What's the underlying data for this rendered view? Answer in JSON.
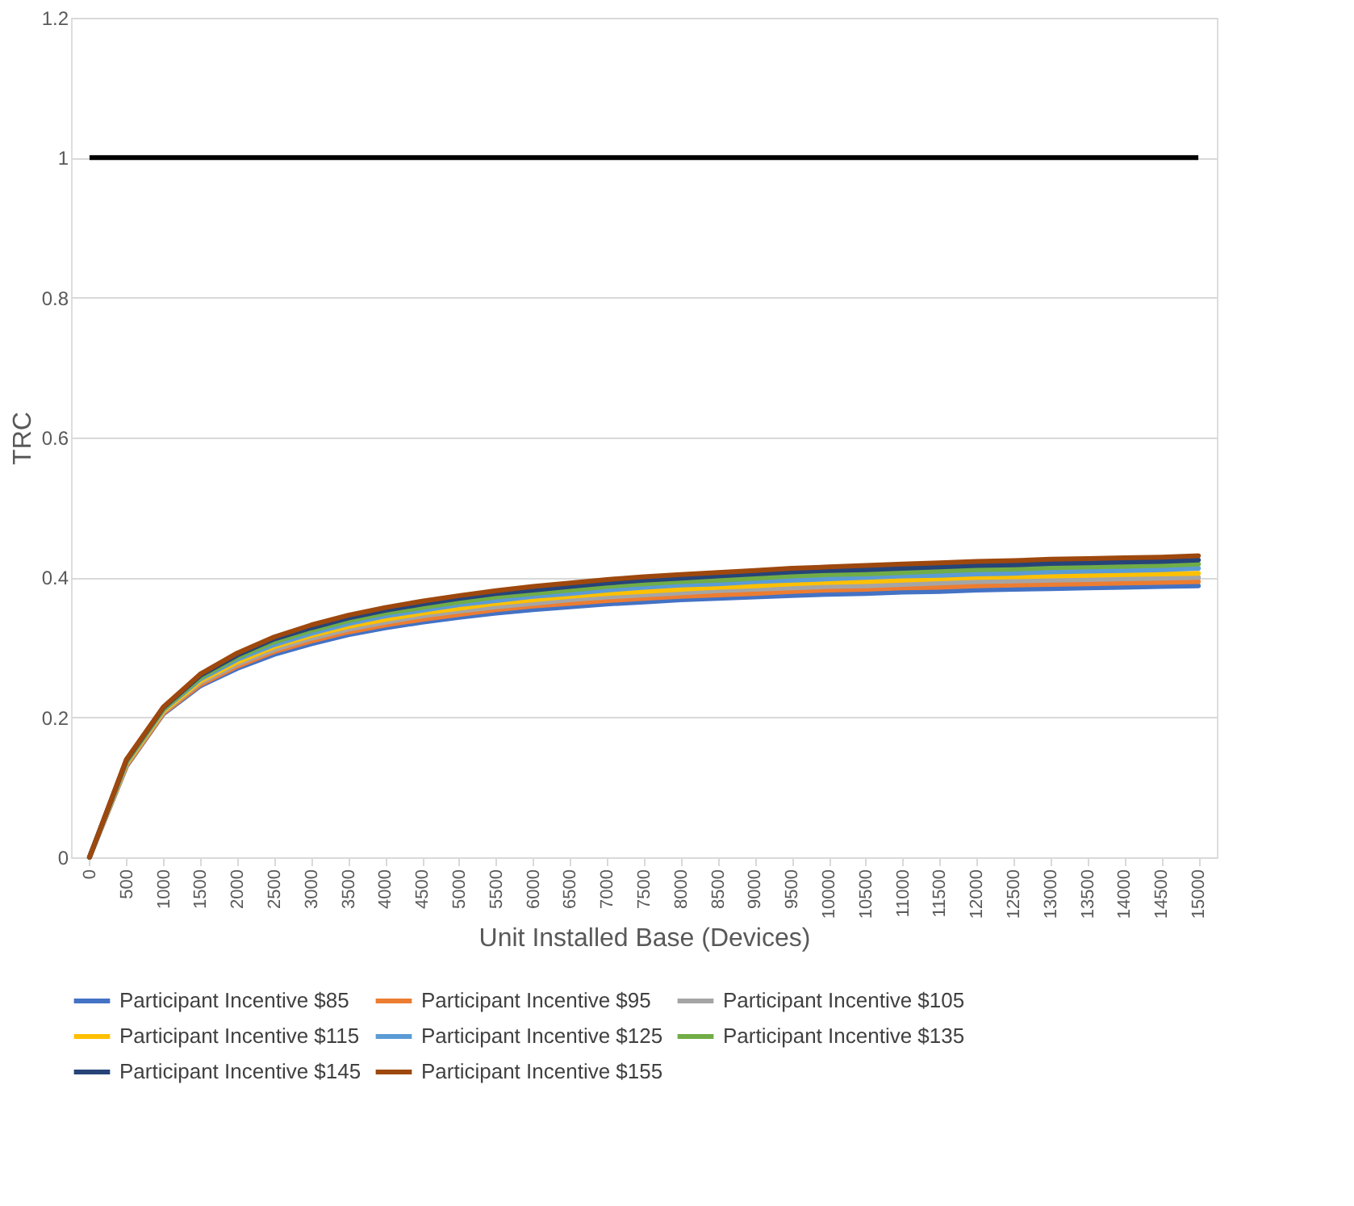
{
  "chart_data": {
    "type": "line",
    "xlabel": "Unit Installed Base (Devices)",
    "ylabel": "TRC",
    "categories": [
      "0",
      "500",
      "1000",
      "1500",
      "2000",
      "2500",
      "3000",
      "3500",
      "4000",
      "4500",
      "5000",
      "5500",
      "6000",
      "6500",
      "7000",
      "7500",
      "8000",
      "8500",
      "9000",
      "9500",
      "10000",
      "10500",
      "11000",
      "11500",
      "12000",
      "12500",
      "13000",
      "13500",
      "14000",
      "14500",
      "15000"
    ],
    "ylim": [
      0,
      1.2
    ],
    "yticks": [
      0,
      0.2,
      0.4,
      0.6,
      0.8,
      1,
      1.2
    ],
    "grid": "y",
    "legend": "bottom",
    "marker": "none",
    "line_style": "solid",
    "ref_lines": [
      {
        "axis": "y",
        "value": 1,
        "color": "#000000",
        "line_style": "solid"
      }
    ],
    "series": [
      {
        "name": "Participant Incentive $85",
        "color": "#4472c4",
        "values": [
          0,
          0.13,
          0.205,
          0.245,
          0.27,
          0.29,
          0.305,
          0.318,
          0.328,
          0.336,
          0.343,
          0.349,
          0.354,
          0.358,
          0.362,
          0.365,
          0.368,
          0.37,
          0.372,
          0.374,
          0.376,
          0.377,
          0.379,
          0.38,
          0.382,
          0.383,
          0.384,
          0.385,
          0.386,
          0.387,
          0.388
        ]
      },
      {
        "name": "Participant Incentive $95",
        "color": "#ed7d31",
        "values": [
          0,
          0.131,
          0.206,
          0.247,
          0.273,
          0.294,
          0.309,
          0.322,
          0.332,
          0.34,
          0.347,
          0.354,
          0.359,
          0.363,
          0.367,
          0.37,
          0.373,
          0.375,
          0.377,
          0.38,
          0.382,
          0.383,
          0.385,
          0.386,
          0.388,
          0.389,
          0.39,
          0.391,
          0.392,
          0.393,
          0.394
        ]
      },
      {
        "name": "Participant Incentive $105",
        "color": "#a5a5a5",
        "values": [
          0,
          0.133,
          0.208,
          0.25,
          0.276,
          0.297,
          0.313,
          0.326,
          0.336,
          0.345,
          0.352,
          0.358,
          0.363,
          0.368,
          0.372,
          0.375,
          0.378,
          0.381,
          0.383,
          0.385,
          0.387,
          0.388,
          0.39,
          0.392,
          0.394,
          0.395,
          0.396,
          0.397,
          0.398,
          0.399,
          0.4
        ]
      },
      {
        "name": "Participant Incentive $115",
        "color": "#ffc000",
        "values": [
          0,
          0.134,
          0.209,
          0.252,
          0.279,
          0.301,
          0.317,
          0.33,
          0.34,
          0.349,
          0.356,
          0.363,
          0.368,
          0.373,
          0.377,
          0.38,
          0.383,
          0.386,
          0.388,
          0.391,
          0.393,
          0.394,
          0.396,
          0.398,
          0.4,
          0.401,
          0.402,
          0.403,
          0.404,
          0.405,
          0.406
        ]
      },
      {
        "name": "Participant Incentive $125",
        "color": "#5b9bd5",
        "values": [
          0,
          0.136,
          0.211,
          0.255,
          0.283,
          0.304,
          0.32,
          0.334,
          0.345,
          0.353,
          0.361,
          0.367,
          0.373,
          0.377,
          0.382,
          0.386,
          0.389,
          0.391,
          0.394,
          0.396,
          0.398,
          0.4,
          0.402,
          0.403,
          0.405,
          0.406,
          0.408,
          0.409,
          0.41,
          0.411,
          0.413
        ]
      },
      {
        "name": "Participant Incentive $135",
        "color": "#70ad47",
        "values": [
          0,
          0.137,
          0.212,
          0.257,
          0.286,
          0.308,
          0.324,
          0.338,
          0.349,
          0.357,
          0.365,
          0.372,
          0.377,
          0.382,
          0.387,
          0.391,
          0.394,
          0.396,
          0.399,
          0.402,
          0.404,
          0.405,
          0.407,
          0.409,
          0.411,
          0.412,
          0.414,
          0.415,
          0.416,
          0.417,
          0.419
        ]
      },
      {
        "name": "Participant Incentive $145",
        "color": "#264478",
        "values": [
          0,
          0.139,
          0.214,
          0.26,
          0.289,
          0.312,
          0.328,
          0.342,
          0.353,
          0.362,
          0.37,
          0.377,
          0.382,
          0.387,
          0.392,
          0.396,
          0.399,
          0.402,
          0.405,
          0.408,
          0.41,
          0.411,
          0.413,
          0.415,
          0.417,
          0.418,
          0.42,
          0.421,
          0.422,
          0.423,
          0.425
        ]
      },
      {
        "name": "Participant Incentive $155",
        "color": "#9e480e",
        "values": [
          0,
          0.14,
          0.215,
          0.262,
          0.292,
          0.315,
          0.332,
          0.346,
          0.357,
          0.366,
          0.374,
          0.381,
          0.387,
          0.392,
          0.397,
          0.401,
          0.404,
          0.407,
          0.41,
          0.413,
          0.415,
          0.417,
          0.419,
          0.421,
          0.423,
          0.424,
          0.426,
          0.427,
          0.428,
          0.429,
          0.431
        ]
      }
    ]
  }
}
